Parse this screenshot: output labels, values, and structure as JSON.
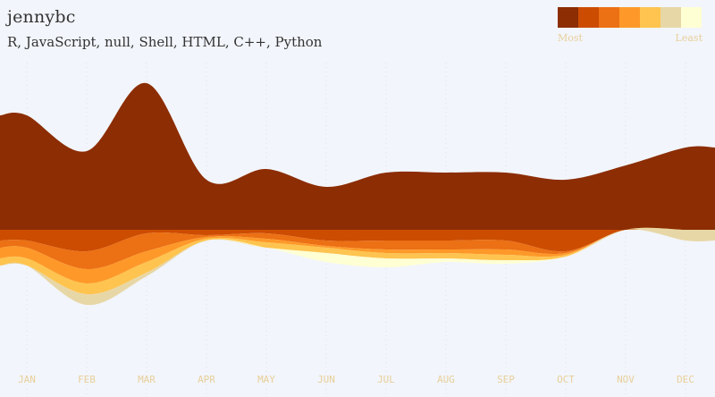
{
  "header": {
    "user": "jennybc",
    "languages": "R, JavaScript, null, Shell, HTML, C++, Python"
  },
  "legend": {
    "most_label": "Most",
    "least_label": "Least",
    "colors": [
      "#8c2d04",
      "#cc4c02",
      "#ec7014",
      "#fe9929",
      "#fec44f",
      "#e8d7a6",
      "#ffffd4"
    ]
  },
  "chart_data": {
    "type": "area",
    "layout": "streamgraph",
    "title": "jennybc",
    "subtitle": "R, JavaScript, null, Shell, HTML, C++, Python",
    "categories": [
      "JAN",
      "FEB",
      "MAR",
      "APR",
      "MAY",
      "JUN",
      "JUL",
      "AUG",
      "SEP",
      "OCT",
      "NOV",
      "DEC"
    ],
    "grid": true,
    "series": [
      {
        "name": "R",
        "color": "#8c2d04",
        "values": [
          32,
          22,
          41,
          14,
          17,
          12,
          16,
          16,
          16,
          14,
          18,
          23
        ]
      },
      {
        "name": "JavaScript",
        "color": "#cc4c02",
        "values": [
          3,
          6,
          1,
          1.5,
          1,
          3,
          3,
          3,
          3,
          6,
          0,
          0
        ]
      },
      {
        "name": "null",
        "color": "#ec7014",
        "values": [
          2,
          5,
          5,
          0.5,
          1.5,
          1.5,
          2.5,
          2.5,
          2.5,
          0.5,
          0,
          0
        ]
      },
      {
        "name": "Shell",
        "color": "#fe9929",
        "values": [
          3,
          4,
          3,
          0.5,
          1,
          0.5,
          1,
          1,
          1.5,
          0.5,
          0,
          0
        ]
      },
      {
        "name": "HTML",
        "color": "#fec44f",
        "values": [
          2,
          3,
          3,
          0.5,
          1.5,
          1.5,
          1.5,
          1.5,
          1.5,
          0.5,
          0,
          0
        ]
      },
      {
        "name": "C++",
        "color": "#e8d7a6",
        "values": [
          0,
          3,
          1,
          0,
          0,
          0,
          0,
          0,
          0,
          0,
          0,
          3
        ]
      },
      {
        "name": "Python",
        "color": "#ffffd4",
        "values": [
          0,
          0,
          0,
          0,
          0,
          2.5,
          2.5,
          1,
          1,
          0,
          0,
          0
        ]
      }
    ]
  }
}
